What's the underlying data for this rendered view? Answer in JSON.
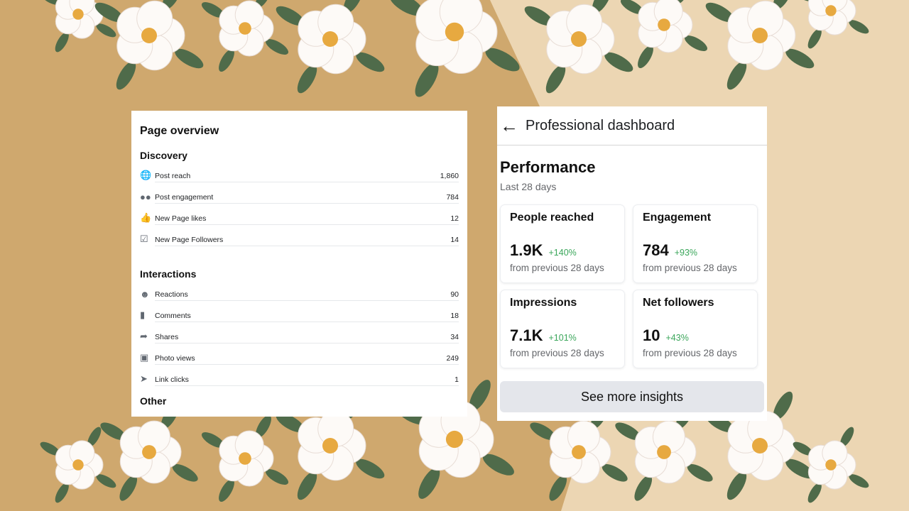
{
  "colors": {
    "bg_left": "#cfa86e",
    "bg_right": "#ecd6b3",
    "positive": "#3aa65a"
  },
  "overview": {
    "title": "Page overview",
    "discovery": {
      "heading": "Discovery",
      "items": [
        {
          "icon": "globe-icon",
          "label": "Post reach",
          "value": "1,860"
        },
        {
          "icon": "people-icon",
          "label": "Post engagement",
          "value": "784"
        },
        {
          "icon": "thumbs-up-icon",
          "label": "New Page likes",
          "value": "12"
        },
        {
          "icon": "follow-check-icon",
          "label": "New Page Followers",
          "value": "14"
        }
      ]
    },
    "interactions": {
      "heading": "Interactions",
      "items": [
        {
          "icon": "smiley-icon",
          "label": "Reactions",
          "value": "90"
        },
        {
          "icon": "comment-icon",
          "label": "Comments",
          "value": "18"
        },
        {
          "icon": "share-icon",
          "label": "Shares",
          "value": "34"
        },
        {
          "icon": "photo-icon",
          "label": "Photo views",
          "value": "249"
        },
        {
          "icon": "cursor-icon",
          "label": "Link clicks",
          "value": "1"
        }
      ]
    },
    "other_heading": "Other"
  },
  "dashboard": {
    "title": "Professional dashboard",
    "section": "Performance",
    "period": "Last 28 days",
    "cards": [
      {
        "title": "People reached",
        "value": "1.9K",
        "delta": "+140%",
        "note": "from previous 28 days"
      },
      {
        "title": "Engagement",
        "value": "784",
        "delta": "+93%",
        "note": "from previous 28 days"
      },
      {
        "title": "Impressions",
        "value": "7.1K",
        "delta": "+101%",
        "note": "from previous 28 days"
      },
      {
        "title": "Net followers",
        "value": "10",
        "delta": "+43%",
        "note": "from previous 28 days"
      }
    ],
    "button": "See more insights"
  }
}
